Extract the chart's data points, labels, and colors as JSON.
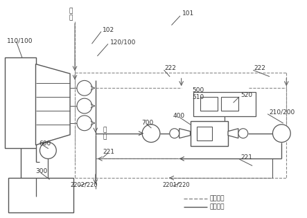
{
  "lc": "#555555",
  "dc": "#888888",
  "tc": "#333333",
  "figsize": [
    4.43,
    3.15
  ],
  "dpi": 100,
  "legend": {
    "dashed_label": "低压管路",
    "solid_label": "高压管路"
  },
  "labels": {
    "110_100": "110/100",
    "inlet": "进\n液",
    "l102": "102",
    "l120_100": "120/100",
    "l101": "101",
    "l222a": "222",
    "l222b": "222",
    "l700": "700",
    "l500": "500",
    "l510": "510",
    "l520": "520",
    "l400": "400",
    "l210_200": "210/200",
    "l221a": "221",
    "l221b": "221",
    "l600": "600",
    "l300": "300",
    "outlet": "出\n液",
    "l2202_220": "2202/220",
    "l2201_220": "2201/220"
  }
}
